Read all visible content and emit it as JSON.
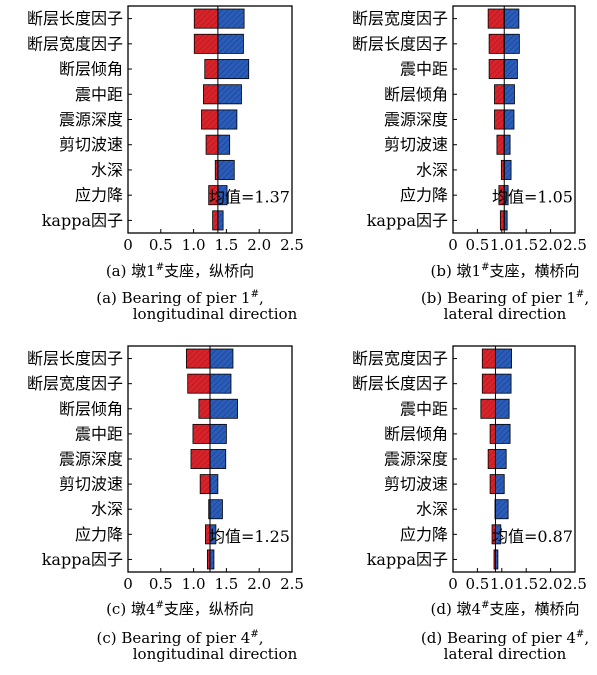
{
  "colors": {
    "low": "#d9232a",
    "high": "#2a5cb8",
    "edge": "#000000",
    "hatch_low": "#a8161c",
    "hatch_high": "#173f8f"
  },
  "chart_data": [
    {
      "type": "tornado-bar",
      "panel": "a",
      "base_label": "均值=1.37",
      "base": 1.37,
      "xlim": [
        0,
        2.5
      ],
      "xticks": [
        "0",
        "0.5",
        "1.0",
        "1.5",
        "2.0",
        "2.5"
      ],
      "tick_values": [
        0,
        0.5,
        1.0,
        1.5,
        2.0,
        2.5
      ],
      "categories": [
        "断层长度因子",
        "断层宽度因子",
        "断层倾角",
        "震中距",
        "震源深度",
        "剪切波速",
        "水深",
        "应力降",
        "kappa因子"
      ],
      "low": [
        1.01,
        1.01,
        1.17,
        1.15,
        1.12,
        1.19,
        1.33,
        1.23,
        1.29
      ],
      "high": [
        1.77,
        1.76,
        1.84,
        1.73,
        1.66,
        1.55,
        1.62,
        1.51,
        1.45
      ],
      "caption_cn": "(a) 墩1#支座，纵桥向",
      "caption_en_1": "(a) Bearing of pier 1#,",
      "caption_en_2": "longitudinal direction"
    },
    {
      "type": "tornado-bar",
      "panel": "b",
      "base_label": "均值=1.05",
      "base": 1.05,
      "xlim": [
        0,
        2.5
      ],
      "xticks": [
        "0",
        "0.5",
        "1.0",
        "1.5",
        "2.0",
        "2.5"
      ],
      "tick_values": [
        0,
        0.5,
        1.0,
        1.5,
        2.0,
        2.5
      ],
      "categories": [
        "断层宽度因子",
        "断层长度因子",
        "震中距",
        "断层倾角",
        "震源深度",
        "剪切波速",
        "水深",
        "应力降",
        "kappa因子"
      ],
      "low": [
        0.72,
        0.74,
        0.74,
        0.85,
        0.85,
        0.9,
        0.99,
        0.94,
        0.97
      ],
      "high": [
        1.35,
        1.36,
        1.32,
        1.26,
        1.25,
        1.17,
        1.19,
        1.13,
        1.11
      ],
      "caption_cn": "(b) 墩1#支座，横桥向",
      "caption_en_1": "(b) Bearing of pier 1#,",
      "caption_en_2": "lateral direction"
    },
    {
      "type": "tornado-bar",
      "panel": "c",
      "base_label": "均值=1.25",
      "base": 1.25,
      "xlim": [
        0,
        2.5
      ],
      "xticks": [
        "0",
        "0.5",
        "1.0",
        "1.5",
        "2.0",
        "2.5"
      ],
      "tick_values": [
        0,
        0.5,
        1.0,
        1.5,
        2.0,
        2.5
      ],
      "categories": [
        "断层长度因子",
        "断层宽度因子",
        "断层倾角",
        "震中距",
        "震源深度",
        "剪切波速",
        "水深",
        "应力降",
        "kappa因子"
      ],
      "low": [
        0.89,
        0.91,
        1.08,
        0.99,
        0.96,
        1.1,
        1.23,
        1.18,
        1.21
      ],
      "high": [
        1.6,
        1.57,
        1.67,
        1.5,
        1.49,
        1.37,
        1.44,
        1.34,
        1.31
      ],
      "caption_cn": "(c) 墩4#支座，纵桥向",
      "caption_en_1": "(c) Bearing of pier 4#,",
      "caption_en_2": "longitudinal direction"
    },
    {
      "type": "tornado-bar",
      "panel": "d",
      "base_label": "均值=0.87",
      "base": 0.87,
      "xlim": [
        0,
        2.5
      ],
      "xticks": [
        "0",
        "0.5",
        "1.0",
        "1.5",
        "2.0",
        "2.5"
      ],
      "tick_values": [
        0,
        0.5,
        1.0,
        1.5,
        2.0,
        2.5
      ],
      "categories": [
        "断层宽度因子",
        "断层长度因子",
        "震中距",
        "断层倾角",
        "震源深度",
        "剪切波速",
        "水深",
        "应力降",
        "kappa因子"
      ],
      "low": [
        0.6,
        0.6,
        0.57,
        0.76,
        0.72,
        0.76,
        0.86,
        0.8,
        0.84
      ],
      "high": [
        1.2,
        1.19,
        1.15,
        1.17,
        1.09,
        1.05,
        1.13,
        0.98,
        0.92
      ],
      "caption_cn": "(d) 墩4#支座，横桥向",
      "caption_en_1": "(d) Bearing of pier 4#,",
      "caption_en_2": "lateral direction"
    }
  ]
}
